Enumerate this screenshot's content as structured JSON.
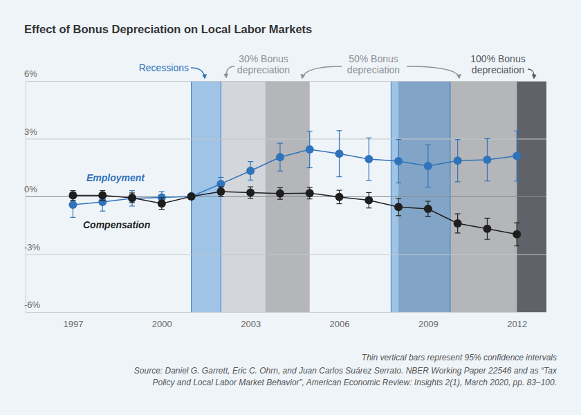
{
  "chart_data": {
    "type": "line",
    "title": "Effect of Bonus Depreciation on Local Labor Markets",
    "x": [
      1997,
      1998,
      1999,
      2000,
      2001,
      2002,
      2003,
      2004,
      2005,
      2006,
      2007,
      2008,
      2009,
      2010,
      2011,
      2012
    ],
    "xlim": [
      1995.4,
      2013
    ],
    "xticks": [
      1997,
      2000,
      2003,
      2006,
      2009,
      2012
    ],
    "ylim": [
      -6,
      6
    ],
    "yticks": [
      {
        "value": -6,
        "label": "-6%"
      },
      {
        "value": -3,
        "label": "-3%"
      },
      {
        "value": 0,
        "label": "0%"
      },
      {
        "value": 3,
        "label": "3%"
      },
      {
        "value": 6,
        "label": "6%"
      }
    ],
    "grid": true,
    "marker": "circle",
    "series": [
      {
        "name": "Employment",
        "color": "#2f73ba",
        "values": [
          -0.43,
          -0.29,
          -0.1,
          -0.05,
          0,
          0.65,
          1.33,
          2.04,
          2.44,
          2.22,
          1.94,
          1.83,
          1.58,
          1.86,
          1.9,
          2.1
        ],
        "errors": [
          0.66,
          0.47,
          0.4,
          0.3,
          null,
          0.34,
          0.48,
          0.72,
          0.95,
          1.2,
          1.1,
          1.13,
          1.1,
          1.1,
          1.1,
          1.3
        ]
      },
      {
        "name": "Compensation",
        "color": "#1e1e1e",
        "values": [
          0.05,
          0.05,
          -0.07,
          -0.37,
          0,
          0.25,
          0.2,
          0.15,
          0.17,
          -0.03,
          -0.2,
          -0.55,
          -0.65,
          -1.4,
          -1.68,
          -1.97
        ],
        "errors": [
          0.25,
          0.25,
          0.25,
          0.3,
          null,
          0.25,
          0.3,
          0.3,
          0.3,
          0.35,
          0.4,
          0.45,
          0.4,
          0.5,
          0.55,
          0.6
        ]
      }
    ],
    "shaded_periods": [
      {
        "label": [
          "30% Bonus",
          "depreciation"
        ],
        "color": "#d3d6da",
        "ranges": [
          [
            2002,
            2003.5
          ]
        ]
      },
      {
        "label": [
          "50% Bonus",
          "depreciation"
        ],
        "color": "#b4b6ba",
        "ranges": [
          [
            2003.5,
            2005
          ],
          [
            2008,
            2012
          ]
        ]
      },
      {
        "label": [
          "100% Bonus",
          "depreciation"
        ],
        "color": "#5f6369",
        "ranges": [
          [
            2012,
            2013
          ]
        ]
      },
      {
        "label": [
          "Recessions"
        ],
        "color": "#4f93d4",
        "ranges": [
          [
            2001,
            2002
          ],
          [
            2007.75,
            2009.75
          ]
        ]
      }
    ],
    "notes": [
      "Thin vertical bars represent 95% confidence intervals",
      "Source: Daniel G. Garrett, Eric C. Ohrn, and Juan Carlos Suárez Serrato. NBER Working Paper 22546 and as “Tax",
      "Policy and Local Labor Market Behavior”, American Economic Review: Insights 2(1), March 2020, pp. 83–100."
    ]
  }
}
